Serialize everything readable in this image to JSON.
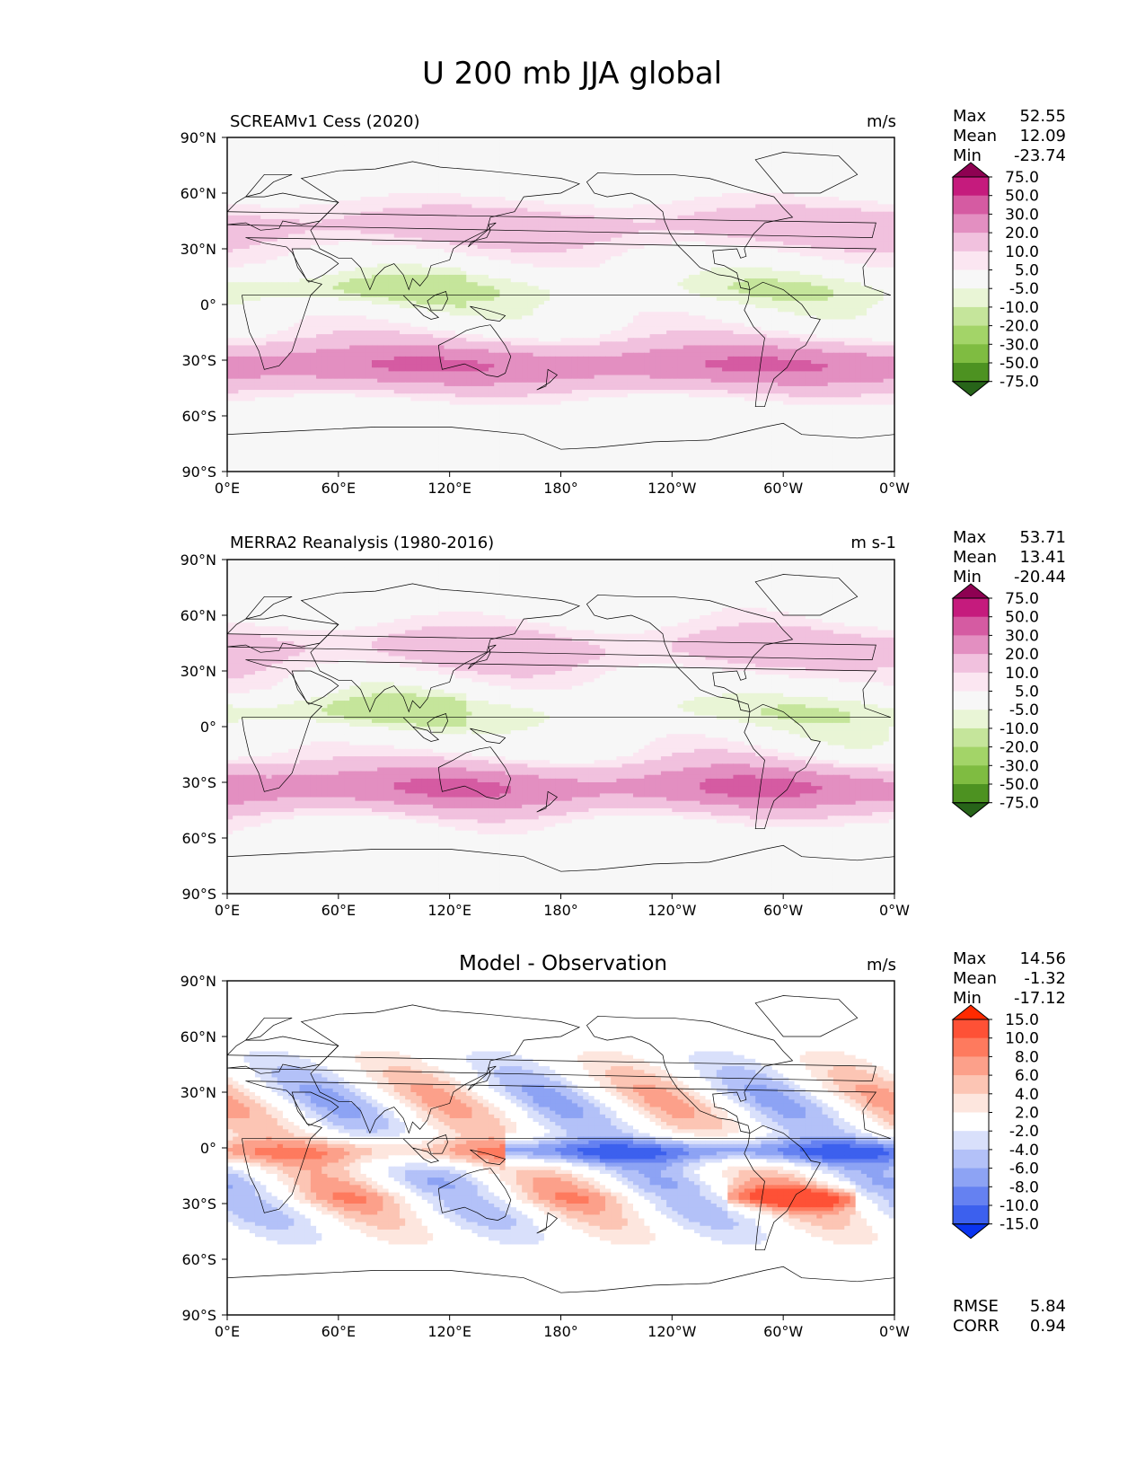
{
  "chart_data": {
    "type": "contour-map",
    "title": "U 200 mb JJA global",
    "lat_ticks": [
      "90°N",
      "60°N",
      "30°N",
      "0°",
      "30°S",
      "60°S",
      "90°S"
    ],
    "lon_ticks": [
      "0°E",
      "60°E",
      "120°E",
      "180°",
      "120°W",
      "60°W",
      "0°W"
    ],
    "panels": [
      {
        "title": "SCREAMv1 Cess (2020)",
        "units": "m/s",
        "stats": [
          {
            "label": "Max",
            "value": "52.55"
          },
          {
            "label": "Mean",
            "value": "12.09"
          },
          {
            "label": "Min",
            "value": "-23.74"
          }
        ],
        "colorbar": {
          "levels": [
            "75.0",
            "50.0",
            "30.0",
            "20.0",
            "10.0",
            "5.0",
            "-5.0",
            "-10.0",
            "-20.0",
            "-30.0",
            "-50.0",
            "-75.0"
          ],
          "colors": [
            "#8e0152",
            "#c51b7d",
            "#d55ba2",
            "#e38fc1",
            "#f1c1de",
            "#fbe6f1",
            "#f7f7f7",
            "#e9f5d6",
            "#c5e59b",
            "#a3d468",
            "#7fbc41",
            "#4d9221",
            "#276419"
          ]
        }
      },
      {
        "title": "MERRA2 Reanalysis (1980-2016)",
        "units": "m s-1",
        "stats": [
          {
            "label": "Max",
            "value": "53.71"
          },
          {
            "label": "Mean",
            "value": "13.41"
          },
          {
            "label": "Min",
            "value": "-20.44"
          }
        ],
        "colorbar": {
          "levels": [
            "75.0",
            "50.0",
            "30.0",
            "20.0",
            "10.0",
            "5.0",
            "-5.0",
            "-10.0",
            "-20.0",
            "-30.0",
            "-50.0",
            "-75.0"
          ],
          "colors": [
            "#8e0152",
            "#c51b7d",
            "#d55ba2",
            "#e38fc1",
            "#f1c1de",
            "#fbe6f1",
            "#f7f7f7",
            "#e9f5d6",
            "#c5e59b",
            "#a3d468",
            "#7fbc41",
            "#4d9221",
            "#276419"
          ]
        }
      },
      {
        "title": "Model - Observation",
        "units": "m/s",
        "stats": [
          {
            "label": "Max",
            "value": "14.56"
          },
          {
            "label": "Mean",
            "value": "-1.32"
          },
          {
            "label": "Min",
            "value": "-17.12"
          }
        ],
        "extra_stats": [
          {
            "label": "RMSE",
            "value": "5.84"
          },
          {
            "label": "CORR",
            "value": "0.94"
          }
        ],
        "colorbar": {
          "levels": [
            "15.0",
            "10.0",
            "8.0",
            "6.0",
            "4.0",
            "2.0",
            "-2.0",
            "-4.0",
            "-6.0",
            "-8.0",
            "-10.0",
            "-15.0"
          ],
          "colors": [
            "#ff2a00",
            "#fe5136",
            "#fe7a5e",
            "#fca08a",
            "#fcc5b4",
            "#fde6de",
            "#ffffff",
            "#d9e0fb",
            "#b3c1f8",
            "#8da3f4",
            "#6581f1",
            "#3c60ee",
            "#0a34f0"
          ]
        }
      }
    ]
  }
}
